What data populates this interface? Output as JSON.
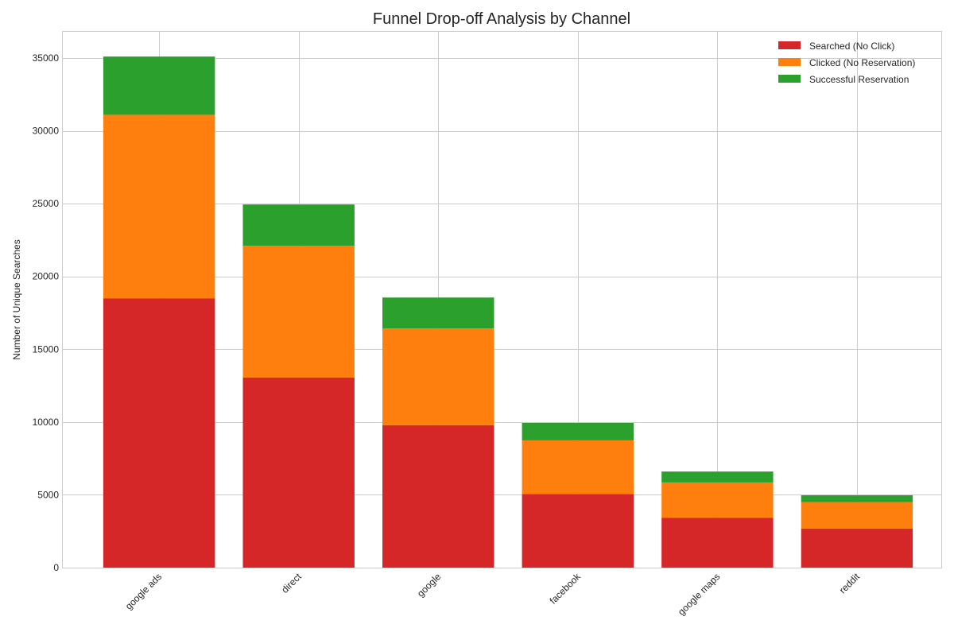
{
  "chart_data": {
    "type": "bar",
    "stacked": true,
    "title": "Funnel Drop-off Analysis by Channel",
    "xlabel": "",
    "ylabel": "Number of Unique Searches",
    "categories": [
      "google ads",
      "direct",
      "google",
      "facebook",
      "google maps",
      "reddit"
    ],
    "ylim": [
      0,
      36800
    ],
    "yticks": [
      0,
      5000,
      10000,
      15000,
      20000,
      25000,
      30000,
      35000
    ],
    "grid": true,
    "legend_position": "top-right",
    "series": [
      {
        "name": "Searched (No Click)",
        "color": "#d62728",
        "values": [
          18500,
          13050,
          9780,
          5060,
          3430,
          2680
        ]
      },
      {
        "name": "Clicked (No Reservation)",
        "color": "#ff7f0e",
        "values": [
          12600,
          9050,
          6650,
          3680,
          2420,
          1820
        ]
      },
      {
        "name": "Successful Reservation",
        "color": "#2ca02c",
        "values": [
          4000,
          2840,
          2120,
          1200,
          750,
          470
        ]
      }
    ]
  }
}
